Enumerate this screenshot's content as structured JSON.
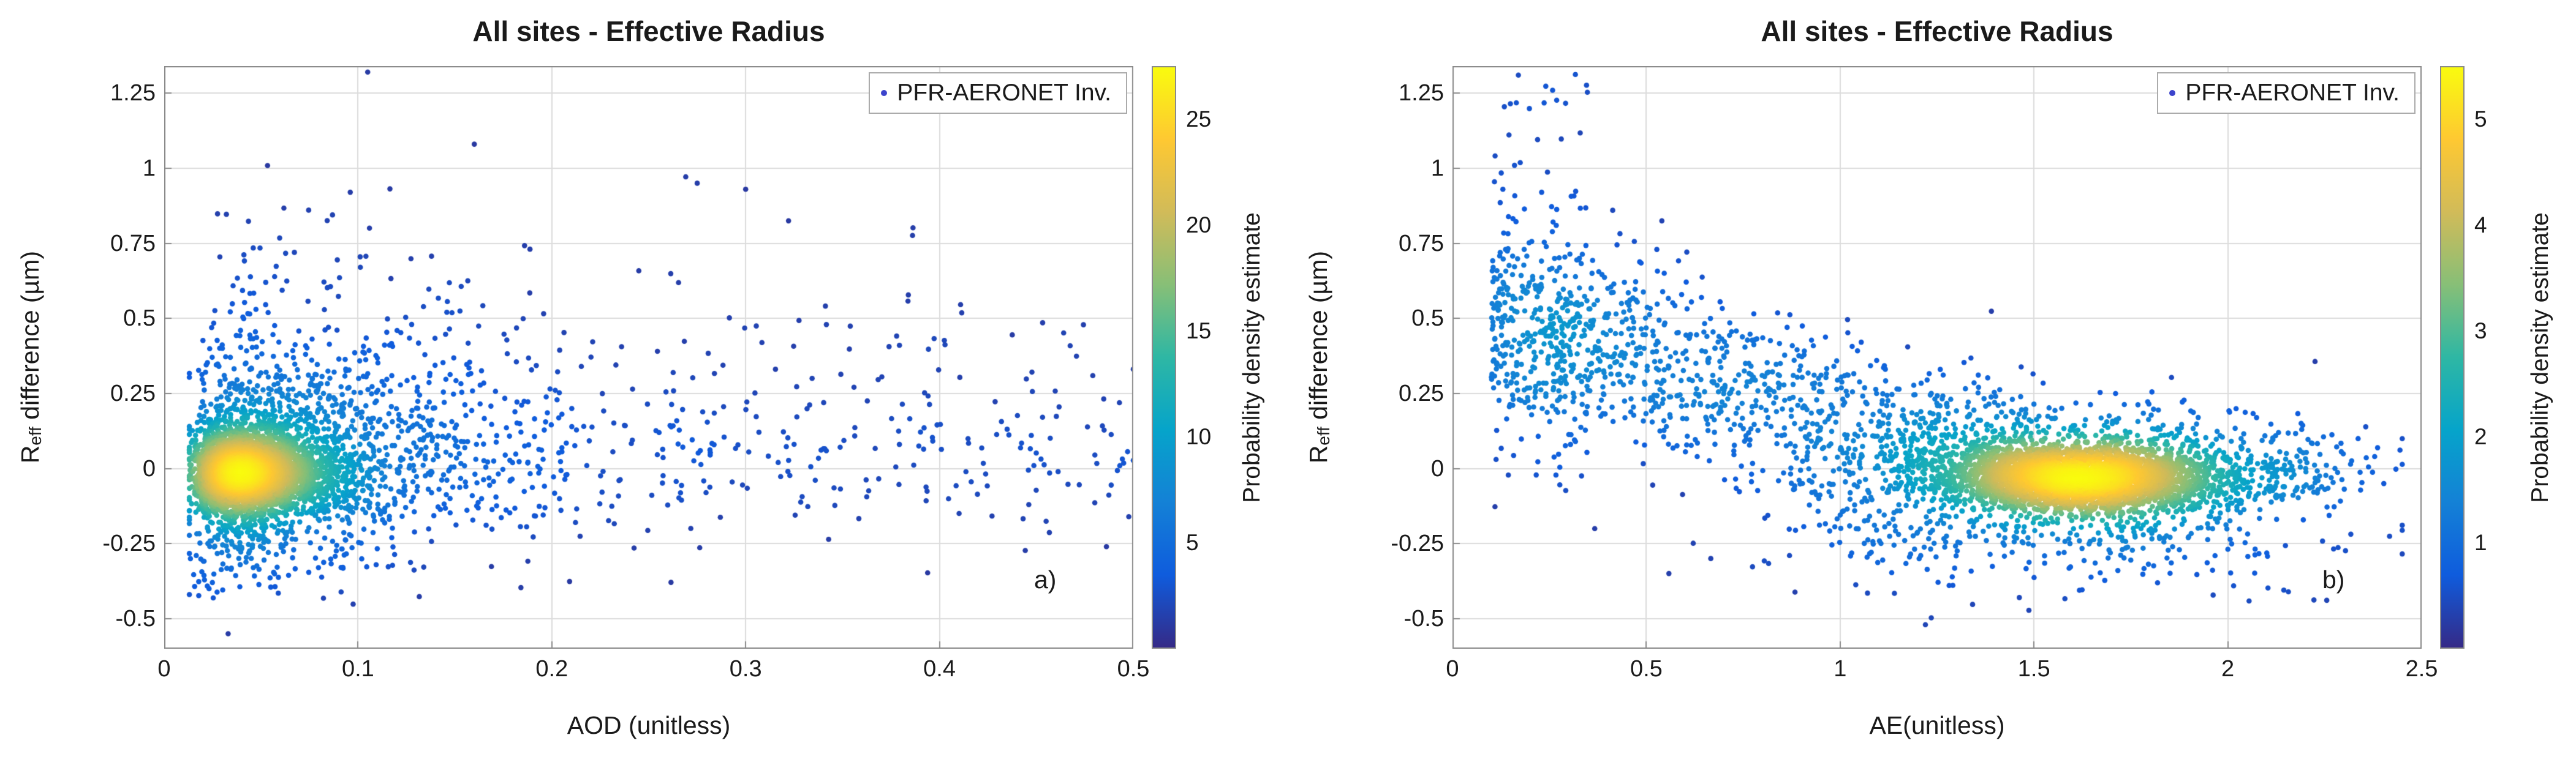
{
  "figure": {
    "background": "#ffffff",
    "text_color": "#1a1a1a",
    "axis_color": "#8a8a8a",
    "grid_color": "#dcdcdc",
    "colormap": "parula",
    "colormap_stops": [
      "#352a87",
      "#0f5cdd",
      "#1481d6",
      "#06a4ca",
      "#2eb7a4",
      "#87bf77",
      "#d1bb59",
      "#fec832",
      "#f9fb0e"
    ],
    "legend_marker_color": "#3c44cc"
  },
  "chart_data": [
    {
      "type": "scatter-density",
      "panel_label": "a)",
      "title": "All sites - Effective Radius",
      "xlabel": "AOD (unitless)",
      "ylabel_prefix": "R",
      "ylabel_sub": "eff",
      "ylabel_suffix": " difference (µm)",
      "xlim": [
        0,
        0.5
      ],
      "ylim": [
        -0.6,
        1.34
      ],
      "xticks": [
        0,
        0.1,
        0.2,
        0.3,
        0.4,
        0.5
      ],
      "xtick_labels": [
        "0",
        "0.1",
        "0.2",
        "0.3",
        "0.4",
        "0.5"
      ],
      "yticks": [
        -0.5,
        -0.25,
        0,
        0.25,
        0.5,
        0.75,
        1,
        1.25
      ],
      "ytick_labels": [
        "-0.5",
        "-0.25",
        "0",
        "0.25",
        "0.5",
        "0.75",
        "1",
        "1.25"
      ],
      "grid": true,
      "legend": "PFR-AERONET Inv.",
      "colorbar": {
        "label": "Probability density estimate",
        "ticks": [
          5,
          10,
          15,
          20,
          25
        ],
        "lim": [
          0,
          27.5
        ]
      },
      "points": {
        "seed": 42,
        "xclamp": [
          0.013,
          0.5
        ],
        "yclamp": [
          -0.58,
          1.33
        ],
        "clusters": [
          {
            "n": 3000,
            "x": {
              "type": "lognormal",
              "mu": 0.042,
              "sigma": 0.38
            },
            "y": {
              "type": "normal",
              "mu": -0.015,
              "sigma": 0.055
            }
          },
          {
            "n": 1500,
            "x": {
              "type": "lognormal",
              "mu": 0.055,
              "sigma": 0.65
            },
            "y": {
              "type": "normal",
              "mu": 0.0,
              "sigma": 0.13
            }
          },
          {
            "n": 420,
            "x": {
              "type": "lognormal",
              "mu": 0.08,
              "sigma": 0.65
            },
            "y": {
              "type": "halfnormal",
              "base": 0.1,
              "sigma": 0.3,
              "sign": 1
            }
          },
          {
            "n": 280,
            "x": {
              "type": "uniform",
              "min": 0.015,
              "max": 0.5
            },
            "y": {
              "type": "normal",
              "mu": 0.05,
              "sigma": 0.14
            }
          },
          {
            "n": 160,
            "x": {
              "type": "lognormal",
              "mu": 0.05,
              "sigma": 0.55
            },
            "y": {
              "type": "normal",
              "mu": -0.27,
              "sigma": 0.1
            }
          },
          {
            "n": 70,
            "x": {
              "type": "uniform",
              "min": 0.08,
              "max": 0.48
            },
            "y": {
              "type": "normal",
              "mu": 0.42,
              "sigma": 0.2
            }
          }
        ],
        "extra_points": [
          [
            0.105,
            1.32
          ],
          [
            0.16,
            1.08
          ],
          [
            0.3,
            0.93
          ],
          [
            0.096,
            0.92
          ],
          [
            0.275,
            0.95
          ],
          [
            0.033,
            -0.55
          ]
        ]
      }
    },
    {
      "type": "scatter-density",
      "panel_label": "b)",
      "title": "All sites - Effective Radius",
      "xlabel": "AE(unitless)",
      "ylabel_prefix": "R",
      "ylabel_sub": "eff",
      "ylabel_suffix": " difference (µm)",
      "xlim": [
        0,
        2.5
      ],
      "ylim": [
        -0.6,
        1.34
      ],
      "xticks": [
        0,
        0.5,
        1,
        1.5,
        2,
        2.5
      ],
      "xtick_labels": [
        "0",
        "0.5",
        "1",
        "1.5",
        "2",
        "2.5"
      ],
      "yticks": [
        -0.5,
        -0.25,
        0,
        0.25,
        0.5,
        0.75,
        1,
        1.25
      ],
      "ytick_labels": [
        "-0.5",
        "-0.25",
        "0",
        "0.25",
        "0.5",
        "0.75",
        "1",
        "1.25"
      ],
      "grid": true,
      "legend": "PFR-AERONET Inv.",
      "colorbar": {
        "label": "Probability density estimate",
        "ticks": [
          1,
          2,
          3,
          4,
          5
        ],
        "lim": [
          0,
          5.5
        ]
      },
      "points": {
        "seed": 1337,
        "xclamp": [
          0.05,
          2.45
        ],
        "yclamp": [
          -0.58,
          1.33
        ],
        "clusters": [
          {
            "n": 3000,
            "x": {
              "type": "normal",
              "mu": 1.63,
              "sigma": 0.17
            },
            "y": {
              "type": "normal",
              "mu": -0.03,
              "sigma": 0.05
            }
          },
          {
            "n": 1200,
            "x": {
              "type": "normal",
              "mu": 1.55,
              "sigma": 0.33
            },
            "y": {
              "type": "normal",
              "mu": -0.01,
              "sigma": 0.11
            }
          },
          {
            "n": 800,
            "x": {
              "type": "uniform",
              "min": 0.25,
              "max": 1.5
            },
            "y": {
              "type": "trend",
              "x0": 0.25,
              "y0": 0.42,
              "x1": 1.5,
              "y1": 0.03,
              "sigma": 0.13
            }
          },
          {
            "n": 420,
            "x": {
              "type": "halfnormal",
              "base": 0.1,
              "sigma": 0.22,
              "sign": 1
            },
            "y": {
              "type": "normal",
              "mu": 0.45,
              "sigma": 0.19
            }
          },
          {
            "n": 160,
            "x": {
              "type": "normal",
              "mu": 2.02,
              "sigma": 0.18
            },
            "y": {
              "type": "normal",
              "mu": -0.02,
              "sigma": 0.06
            }
          },
          {
            "n": 200,
            "x": {
              "type": "normal",
              "mu": 1.5,
              "sigma": 0.38
            },
            "y": {
              "type": "normal",
              "mu": -0.27,
              "sigma": 0.09
            }
          },
          {
            "n": 30,
            "x": {
              "type": "uniform",
              "min": 0.1,
              "max": 0.35
            },
            "y": {
              "type": "uniform",
              "min": 0.85,
              "max": 1.32
            }
          }
        ],
        "extra_points": [
          [
            0.17,
            1.31
          ],
          [
            0.13,
            0.93
          ],
          [
            0.23,
            0.92
          ],
          [
            1.22,
            -0.52
          ]
        ]
      }
    }
  ]
}
